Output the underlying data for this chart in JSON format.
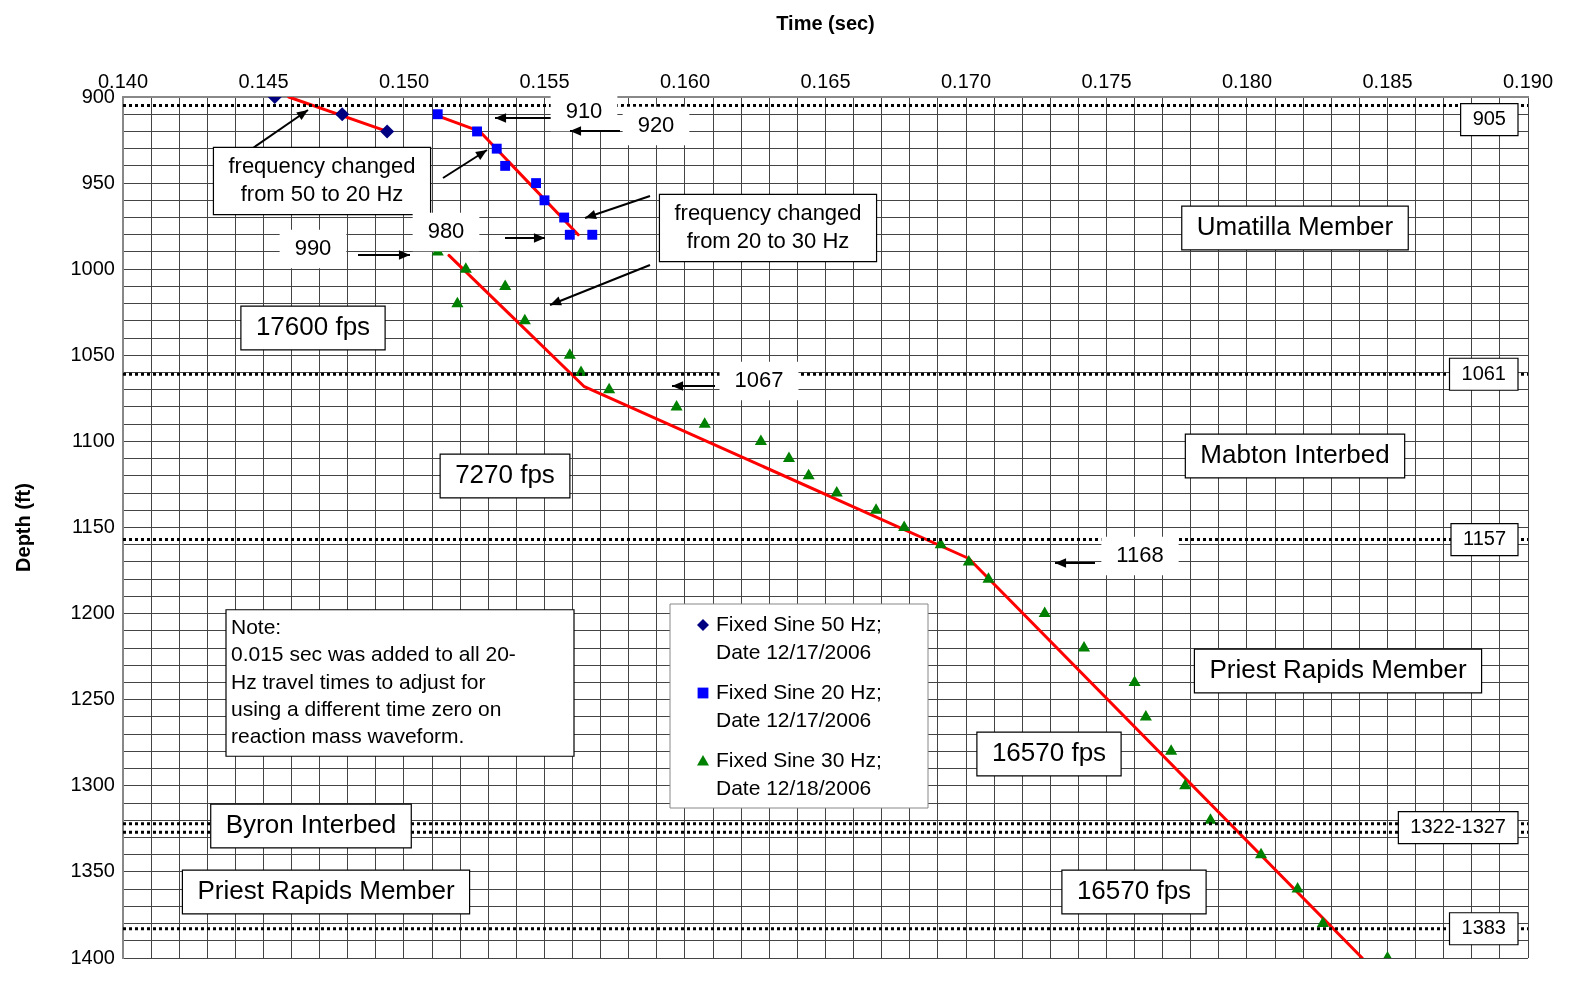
{
  "chart_data": {
    "type": "scatter",
    "xlabel": "Time (sec)",
    "ylabel": "Depth (ft)",
    "xlim": [
      0.14,
      0.19
    ],
    "ylim": [
      1400,
      900
    ],
    "xticks": [
      {
        "value": 0.14,
        "label": "0.140"
      },
      {
        "value": 0.141,
        "label": null
      },
      {
        "value": 0.142,
        "label": null
      },
      {
        "value": 0.143,
        "label": null
      },
      {
        "value": 0.144,
        "label": null
      },
      {
        "value": 0.145,
        "label": "0.145"
      },
      {
        "value": 0.146,
        "label": null
      },
      {
        "value": 0.147,
        "label": null
      },
      {
        "value": 0.148,
        "label": null
      },
      {
        "value": 0.149,
        "label": null
      },
      {
        "value": 0.15,
        "label": "0.150"
      },
      {
        "value": 0.151,
        "label": null
      },
      {
        "value": 0.152,
        "label": null
      },
      {
        "value": 0.153,
        "label": null
      },
      {
        "value": 0.154,
        "label": null
      },
      {
        "value": 0.155,
        "label": "0.155"
      },
      {
        "value": 0.156,
        "label": null
      },
      {
        "value": 0.157,
        "label": null
      },
      {
        "value": 0.158,
        "label": null
      },
      {
        "value": 0.159,
        "label": null
      },
      {
        "value": 0.16,
        "label": "0.160"
      },
      {
        "value": 0.161,
        "label": null
      },
      {
        "value": 0.162,
        "label": null
      },
      {
        "value": 0.163,
        "label": null
      },
      {
        "value": 0.164,
        "label": null
      },
      {
        "value": 0.165,
        "label": "0.165"
      },
      {
        "value": 0.166,
        "label": null
      },
      {
        "value": 0.167,
        "label": null
      },
      {
        "value": 0.168,
        "label": null
      },
      {
        "value": 0.169,
        "label": null
      },
      {
        "value": 0.17,
        "label": "0.170"
      },
      {
        "value": 0.171,
        "label": null
      },
      {
        "value": 0.172,
        "label": null
      },
      {
        "value": 0.173,
        "label": null
      },
      {
        "value": 0.174,
        "label": null
      },
      {
        "value": 0.175,
        "label": "0.175"
      },
      {
        "value": 0.176,
        "label": null
      },
      {
        "value": 0.177,
        "label": null
      },
      {
        "value": 0.178,
        "label": null
      },
      {
        "value": 0.179,
        "label": null
      },
      {
        "value": 0.18,
        "label": "0.180"
      },
      {
        "value": 0.181,
        "label": null
      },
      {
        "value": 0.182,
        "label": null
      },
      {
        "value": 0.183,
        "label": null
      },
      {
        "value": 0.184,
        "label": null
      },
      {
        "value": 0.185,
        "label": "0.185"
      },
      {
        "value": 0.186,
        "label": null
      },
      {
        "value": 0.187,
        "label": null
      },
      {
        "value": 0.188,
        "label": null
      },
      {
        "value": 0.189,
        "label": null
      },
      {
        "value": 0.19,
        "label": "0.190"
      }
    ],
    "yticks": [
      900,
      {
        "value": 910,
        "label": null
      },
      {
        "value": 920,
        "label": null
      },
      {
        "value": 930,
        "label": null
      },
      {
        "value": 940,
        "label": null
      },
      950,
      {
        "value": 960,
        "label": null
      },
      {
        "value": 970,
        "label": null
      },
      {
        "value": 980,
        "label": null
      },
      {
        "value": 990,
        "label": null
      },
      1000,
      {
        "value": 1010,
        "label": null
      },
      {
        "value": 1020,
        "label": null
      },
      {
        "value": 1030,
        "label": null
      },
      {
        "value": 1040,
        "label": null
      },
      1050,
      {
        "value": 1060,
        "label": null
      },
      {
        "value": 1070,
        "label": null
      },
      {
        "value": 1080,
        "label": null
      },
      {
        "value": 1090,
        "label": null
      },
      1100,
      {
        "value": 1110,
        "label": null
      },
      {
        "value": 1120,
        "label": null
      },
      {
        "value": 1130,
        "label": null
      },
      {
        "value": 1140,
        "label": null
      },
      1150,
      {
        "value": 1160,
        "label": null
      },
      {
        "value": 1170,
        "label": null
      },
      {
        "value": 1180,
        "label": null
      },
      {
        "value": 1190,
        "label": null
      },
      1200,
      {
        "value": 1210,
        "label": null
      },
      {
        "value": 1220,
        "label": null
      },
      {
        "value": 1230,
        "label": null
      },
      {
        "value": 1240,
        "label": null
      },
      1250,
      {
        "value": 1260,
        "label": null
      },
      {
        "value": 1270,
        "label": null
      },
      {
        "value": 1280,
        "label": null
      },
      {
        "value": 1290,
        "label": null
      },
      1300,
      {
        "value": 1310,
        "label": null
      },
      {
        "value": 1320,
        "label": null
      },
      {
        "value": 1330,
        "label": null
      },
      {
        "value": 1340,
        "label": null
      },
      1350,
      {
        "value": 1360,
        "label": null
      },
      {
        "value": 1370,
        "label": null
      },
      {
        "value": 1380,
        "label": null
      },
      {
        "value": 1390,
        "label": null
      },
      1400
    ],
    "grid": true,
    "legend": "bottom",
    "series": [
      {
        "name": "Fixed Sine 50 Hz; Date 12/17/2006",
        "marker": "diamond",
        "color": "#000080",
        "x": [
          0.1454,
          0.1478,
          0.1494
        ],
        "values": [
          900,
          910,
          920
        ]
      },
      {
        "name": "Fixed Sine 20 Hz; Date 12/17/2006",
        "marker": "square",
        "color": "#0000ff",
        "x": [
          0.1512,
          0.1526,
          0.1533,
          0.1536,
          0.1547,
          0.155,
          0.1557,
          0.1559,
          0.1567
        ],
        "values": [
          910,
          920,
          930,
          940,
          950,
          960,
          970,
          980,
          980
        ]
      },
      {
        "name": "Fixed Sine 30 Hz; Date 12/18/2006",
        "marker": "triangle",
        "color": "#008000",
        "x": [
          0.1512,
          0.1519,
          0.1522,
          0.1536,
          0.1543,
          0.1559,
          0.1563,
          0.1573,
          0.1597,
          0.1607,
          0.1627,
          0.1637,
          0.1644,
          0.1654,
          0.1668,
          0.1678,
          0.1691,
          0.1701,
          0.1708,
          0.1728,
          0.1742,
          0.176,
          0.1764,
          0.1773,
          0.1778,
          0.1787,
          0.1805,
          0.1818,
          0.1827,
          0.185
        ],
        "values": [
          990,
          1020,
          1000,
          1010,
          1030,
          1050,
          1060,
          1070,
          1080,
          1090,
          1100,
          1110,
          1120,
          1130,
          1140,
          1150,
          1160,
          1170,
          1180,
          1200,
          1220,
          1240,
          1260,
          1280,
          1300,
          1320,
          1340,
          1360,
          1380,
          1400
        ]
      },
      {
        "type": "line",
        "marker": "none",
        "line_style": "solid",
        "color": "#ff0000",
        "x": [
          0.1459,
          0.1494
        ],
        "values": [
          900,
          920
        ]
      },
      {
        "type": "line",
        "marker": "none",
        "line_style": "solid",
        "color": "#ff0000",
        "x": [
          0.1512,
          0.1527,
          0.1562
        ],
        "values": [
          911,
          920,
          980
        ]
      },
      {
        "type": "line",
        "marker": "none",
        "line_style": "solid",
        "color": "#ff0000",
        "x": [
          0.1516,
          0.1564,
          0.1701,
          0.1841
        ],
        "values": [
          992,
          1068,
          1168,
          1400
        ]
      }
    ],
    "ref_lines": [
      {
        "axis": "y",
        "value": 905,
        "label": "905",
        "color": "#000000",
        "line_style": "dotted"
      },
      {
        "axis": "y",
        "value": 1061,
        "label": "1061",
        "color": "#000000",
        "line_style": "dotted"
      },
      {
        "axis": "y",
        "value": 1157,
        "label": "1157",
        "color": "#000000",
        "line_style": "dotted"
      },
      {
        "axis": "y",
        "value": 1322,
        "label": "1322-1327",
        "color": "#000000",
        "line_style": "dotted"
      },
      {
        "axis": "y",
        "value": 1327,
        "color": "#000000",
        "line_style": "dotted"
      },
      {
        "axis": "y",
        "value": 1383,
        "label": "1383",
        "color": "#000000",
        "line_style": "dotted"
      }
    ],
    "annotations": [
      "frequency changed\nfrom 50 to 20 Hz",
      "910",
      "920",
      "frequency changed\nfrom 20 to 30 Hz",
      "990",
      "980",
      "17600 fps",
      "1067",
      "7270 fps",
      "1168",
      "Note:\n0.015 sec was added to all 20-\nHz travel times to adjust for\nusing a different time zero on\nreaction mass waveform.",
      "Umatilla Member",
      "Mabton Interbed",
      "Priest Rapids Member",
      "16570 fps",
      "Byron Interbed",
      "Priest Rapids Member",
      "16570 fps"
    ]
  }
}
